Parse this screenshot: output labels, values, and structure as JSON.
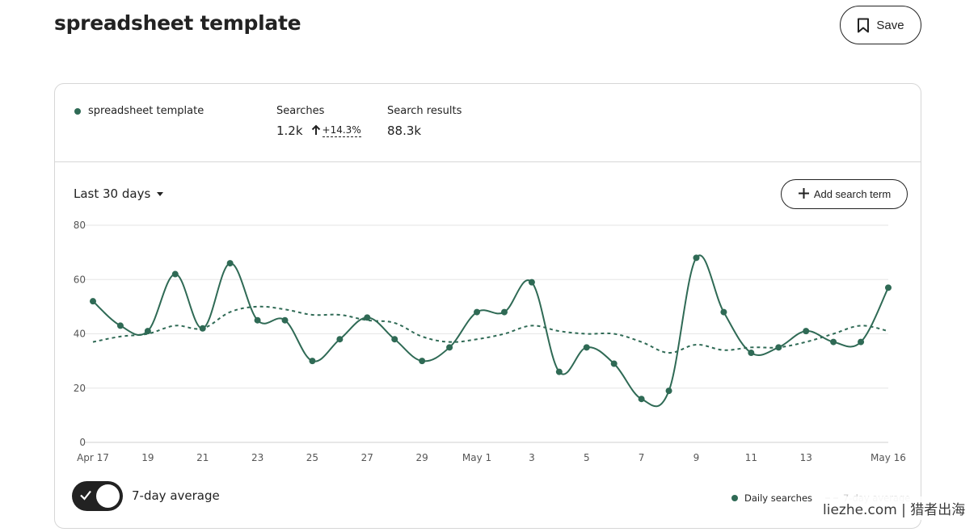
{
  "page": {
    "title": "spreadsheet template",
    "save_label": "Save"
  },
  "summary": {
    "term": "spreadsheet template",
    "searches_label": "Searches",
    "searches_value": "1.2k",
    "searches_change": "+14.3%",
    "results_label": "Search results",
    "results_value": "88.3k"
  },
  "controls": {
    "range_label": "Last 30 days",
    "add_term_label": "Add search term",
    "toggle_label": "7-day average",
    "toggle_on": true
  },
  "legend": {
    "daily": "Daily searches",
    "average": "7-day average"
  },
  "watermark": "liezhe.com | 猎者出海",
  "colors": {
    "series": "#2f6a55",
    "text": "#222222",
    "grid": "#e6e6e6"
  },
  "chart_data": {
    "type": "line",
    "ylim": [
      0,
      80
    ],
    "yticks": [
      0,
      20,
      40,
      60,
      80
    ],
    "x": [
      "Apr 17",
      "Apr 18",
      "Apr 19",
      "Apr 20",
      "Apr 21",
      "Apr 22",
      "Apr 23",
      "Apr 24",
      "Apr 25",
      "Apr 26",
      "Apr 27",
      "Apr 28",
      "Apr 29",
      "Apr 30",
      "May 1",
      "May 2",
      "May 3",
      "May 4",
      "May 5",
      "May 6",
      "May 7",
      "May 8",
      "May 9",
      "May 10",
      "May 11",
      "May 12",
      "May 13",
      "May 14",
      "May 15",
      "May 16"
    ],
    "xtick_labels": [
      "Apr 17",
      "",
      "19",
      "",
      "21",
      "",
      "23",
      "",
      "25",
      "",
      "27",
      "",
      "29",
      "",
      "May 1",
      "",
      "3",
      "",
      "5",
      "",
      "7",
      "",
      "9",
      "",
      "11",
      "",
      "13",
      "",
      "",
      "May 16"
    ],
    "series": [
      {
        "name": "Daily searches",
        "style": "solid-markers",
        "values": [
          52,
          43,
          41,
          62,
          42,
          66,
          45,
          45,
          30,
          38,
          46,
          38,
          30,
          35,
          48,
          48,
          59,
          26,
          35,
          29,
          16,
          19,
          68,
          48,
          33,
          35,
          41,
          37,
          37,
          57
        ]
      },
      {
        "name": "7-day average",
        "style": "dashed",
        "values": [
          37,
          39,
          40,
          43,
          42,
          48,
          50,
          49,
          47,
          47,
          45,
          44,
          39,
          37,
          38,
          40,
          43,
          41,
          40,
          40,
          37,
          33,
          36,
          34,
          35,
          35,
          37,
          40,
          43,
          41
        ]
      }
    ]
  }
}
